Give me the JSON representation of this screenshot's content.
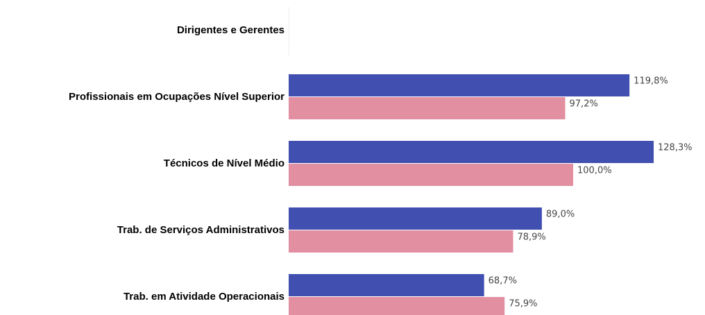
{
  "chart_data": {
    "type": "bar",
    "orientation": "horizontal",
    "categories": [
      "Dirigentes e Gerentes",
      "Profissionais em Ocupações Nível Superior",
      "Técnicos de Nível Médio",
      "Trab. de Serviços Administrativos",
      "Trab. em Atividade Operacionais"
    ],
    "series": [
      {
        "color": "#4150b0",
        "values": [
          null,
          119.8,
          128.3,
          89.0,
          68.7
        ],
        "value_labels": [
          null,
          "119,8%",
          "128,3%",
          "89,0%",
          "68,7%"
        ]
      },
      {
        "color": "#e28fa2",
        "values": [
          null,
          97.2,
          100.0,
          78.9,
          75.9
        ],
        "value_labels": [
          null,
          "97,2%",
          "100,0%",
          "78,9%",
          "75,9%"
        ]
      }
    ]
  }
}
